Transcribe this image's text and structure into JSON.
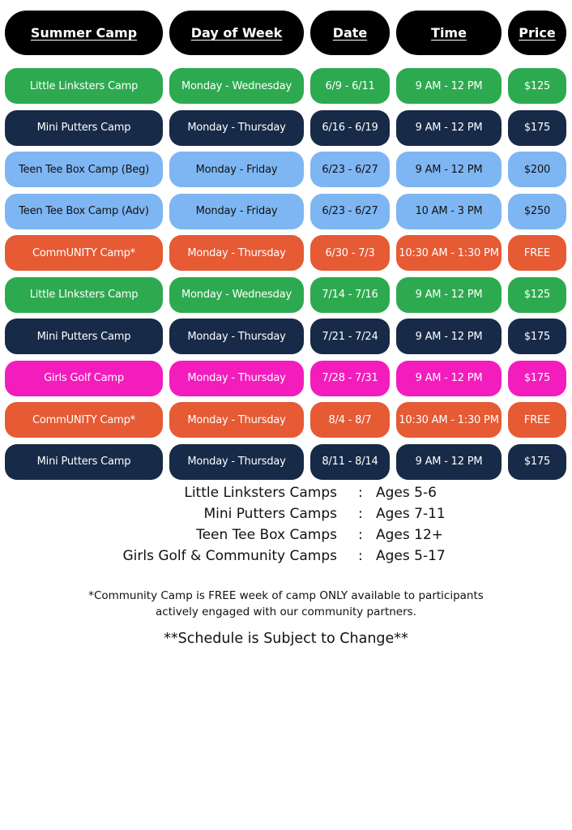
{
  "colors": {
    "header": "#000000",
    "green": "#2DAA4F",
    "navy": "#172A47",
    "lightblue": "#7EB6F3",
    "orange": "#E65A34",
    "pink": "#F21DBC"
  },
  "headers": [
    "Summer Camp",
    "Day of Week",
    "Date",
    "Time",
    "Price"
  ],
  "rows": [
    {
      "camp": "Little Linksters Camp",
      "days": "Monday - Wednesday",
      "date": "6/9 - 6/11",
      "time": "9 AM - 12 PM",
      "price": "$125",
      "color": "green"
    },
    {
      "camp": "Mini Putters Camp",
      "days": "Monday - Thursday",
      "date": "6/16 - 6/19",
      "time": "9 AM - 12 PM",
      "price": "$175",
      "color": "navy"
    },
    {
      "camp": "Teen Tee Box Camp (Beg)",
      "days": "Monday - Friday",
      "date": "6/23 - 6/27",
      "time": "9 AM - 12 PM",
      "price": "$200",
      "color": "lightblue"
    },
    {
      "camp": "Teen Tee Box Camp (Adv)",
      "days": "Monday - Friday",
      "date": "6/23 - 6/27",
      "time": "10 AM - 3 PM",
      "price": "$250",
      "color": "lightblue"
    },
    {
      "camp": "CommUNITY Camp*",
      "days": "Monday - Thursday",
      "date": "6/30 - 7/3",
      "time": "10:30 AM - 1:30 PM",
      "price": "FREE",
      "color": "orange"
    },
    {
      "camp": "Little LInksters Camp",
      "days": "Monday - Wednesday",
      "date": "7/14 - 7/16",
      "time": "9 AM - 12 PM",
      "price": "$125",
      "color": "green"
    },
    {
      "camp": "Mini Putters Camp",
      "days": "Monday - Thursday",
      "date": "7/21 - 7/24",
      "time": "9 AM - 12 PM",
      "price": "$175",
      "color": "navy"
    },
    {
      "camp": "Girls Golf Camp",
      "days": "Monday - Thursday",
      "date": "7/28 - 7/31",
      "time": "9 AM - 12 PM",
      "price": "$175",
      "color": "pink"
    },
    {
      "camp": "CommUNITY Camp*",
      "days": "Monday - Thursday",
      "date": "8/4 - 8/7",
      "time": "10:30 AM - 1:30 PM",
      "price": "FREE",
      "color": "orange"
    },
    {
      "camp": "Mini Putters Camp",
      "days": "Monday - Thursday",
      "date": "8/11 - 8/14",
      "time": "9 AM - 12 PM",
      "price": "$175",
      "color": "navy"
    }
  ],
  "ages": [
    {
      "name": "Little Linksters Camps",
      "sep": ":",
      "ages": "Ages 5-6"
    },
    {
      "name": "Mini Putters Camps",
      "sep": ":",
      "ages": "Ages 7-11"
    },
    {
      "name": "Teen Tee Box Camps",
      "sep": ":",
      "ages": "Ages 12+"
    },
    {
      "name": "Girls Golf & Community Camps",
      "sep": ":",
      "ages": "Ages 5-17"
    }
  ],
  "footnote": {
    "line1": "*Community Camp is FREE week of camp ONLY available to participants",
    "line2": "actively engaged with our community partners."
  },
  "disclaimer": "**Schedule is Subject to Change**"
}
